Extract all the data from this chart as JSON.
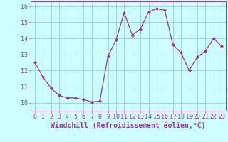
{
  "x": [
    0,
    1,
    2,
    3,
    4,
    5,
    6,
    7,
    8,
    9,
    10,
    11,
    12,
    13,
    14,
    15,
    16,
    17,
    18,
    19,
    20,
    21,
    22,
    23
  ],
  "y": [
    12.5,
    11.6,
    10.9,
    10.45,
    10.3,
    10.3,
    10.2,
    10.05,
    10.1,
    12.9,
    13.9,
    15.6,
    14.2,
    14.6,
    15.65,
    15.85,
    15.75,
    13.6,
    13.1,
    12.0,
    12.85,
    13.2,
    14.0,
    13.5
  ],
  "line_color": "#993399",
  "marker": "D",
  "marker_size": 2,
  "bg_color": "#ccffff",
  "grid_color": "#99cccc",
  "xlabel": "Windchill (Refroidissement éolien,°C)",
  "xlabel_color": "#993399",
  "tick_color": "#993399",
  "ylim": [
    9.5,
    16.3
  ],
  "xlim": [
    -0.5,
    23.5
  ],
  "yticks": [
    10,
    11,
    12,
    13,
    14,
    15,
    16
  ],
  "xticks": [
    0,
    1,
    2,
    3,
    4,
    5,
    6,
    7,
    8,
    9,
    10,
    11,
    12,
    13,
    14,
    15,
    16,
    17,
    18,
    19,
    20,
    21,
    22,
    23
  ],
  "font_family": "monospace",
  "tick_fontsize": 6,
  "xlabel_fontsize": 7
}
